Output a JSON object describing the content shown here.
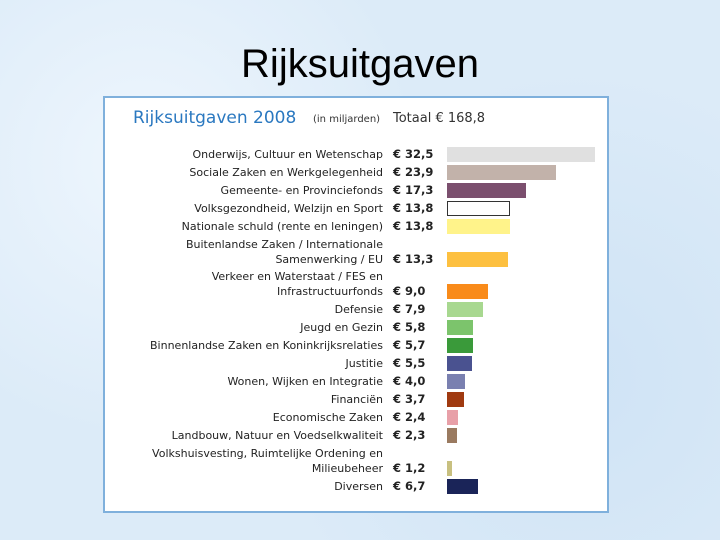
{
  "slide_title": "Rijksuitgaven",
  "chart_data": {
    "type": "bar",
    "orientation": "horizontal",
    "title": "Rijksuitgaven 2008",
    "subtitle": "(in miljarden)",
    "total": "Totaal € 168,8",
    "categories": [
      "Onderwijs, Cultuur en Wetenschap",
      "Sociale Zaken en Werkgelegenheid",
      "Gemeente- en Provinciefonds",
      "Volksgezondheid, Welzijn en Sport",
      "Nationale schuld (rente en leningen)",
      "Buitenlandse Zaken / Internationale\nSamenwerking / EU",
      "Verkeer en Waterstaat / FES en\nInfrastructuurfonds",
      "Defensie",
      "Jeugd en Gezin",
      "Binnenlandse Zaken en Koninkrijksrelaties",
      "Justitie",
      "Wonen, Wijken en Integratie",
      "Financiën",
      "Economische Zaken",
      "Landbouw, Natuur en Voedselkwaliteit",
      "Volkshuisvesting, Ruimtelijke Ordening en\nMilieubeheer",
      "Diversen"
    ],
    "values": [
      32.5,
      23.9,
      17.3,
      13.8,
      13.8,
      13.3,
      9.0,
      7.9,
      5.8,
      5.7,
      5.5,
      4.0,
      3.7,
      2.4,
      2.3,
      1.2,
      6.7
    ],
    "value_labels": [
      "€ 32,5",
      "€ 23,9",
      "€ 17,3",
      "€ 13,8",
      "€ 13,8",
      "€ 13,3",
      "€ 9,0",
      "€ 7,9",
      "€ 5,8",
      "€ 5,7",
      "€ 5,5",
      "€ 4,0",
      "€ 3,7",
      "€ 2,4",
      "€ 2,3",
      "€ 1,2",
      "€ 6,7"
    ],
    "colors": [
      "#e0e0e0",
      "#c2b2aa",
      "#7b4f6e",
      "#ffffff",
      "#fff38a",
      "#fdc040",
      "#f98b1a",
      "#a8d890",
      "#7cc46c",
      "#3a9a3a",
      "#4a5290",
      "#7a80b0",
      "#a03a10",
      "#e8a0a8",
      "#9a7a60",
      "#c8c080",
      "#1a2458"
    ]
  }
}
